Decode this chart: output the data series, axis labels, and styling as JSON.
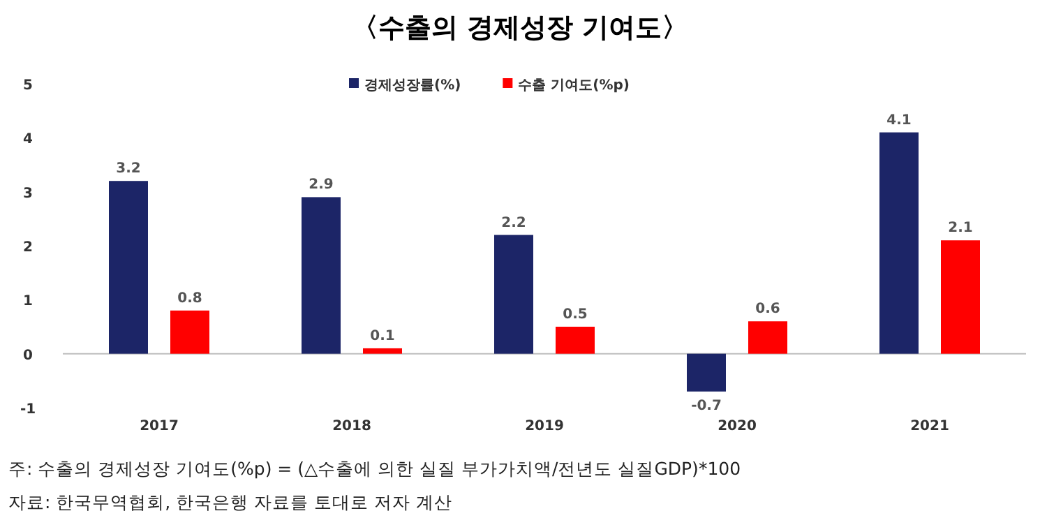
{
  "chart_data": {
    "type": "bar",
    "title": "〈수출의 경제성장 기여도〉",
    "categories": [
      "2017",
      "2018",
      "2019",
      "2020",
      "2021"
    ],
    "series": [
      {
        "name": "경제성장률(%)",
        "color": "#1c2567",
        "values": [
          3.2,
          2.9,
          2.2,
          -0.7,
          4.1
        ]
      },
      {
        "name": "수출 기여도(%p)",
        "color": "#ff0000",
        "values": [
          0.8,
          0.1,
          0.5,
          0.6,
          2.1
        ]
      }
    ],
    "ylim": [
      -1,
      5
    ],
    "yticks": [
      -1,
      0,
      1,
      2,
      3,
      4,
      5
    ],
    "data_labels": true,
    "legend": "top",
    "annotations": [
      "주: 수출의 경제성장 기여도(%p) = (△수출에 의한 실질 부가가치액/전년도 실질GDP)*100",
      "자료: 한국무역협회, 한국은행 자료를 토대로 저자 계산"
    ]
  }
}
